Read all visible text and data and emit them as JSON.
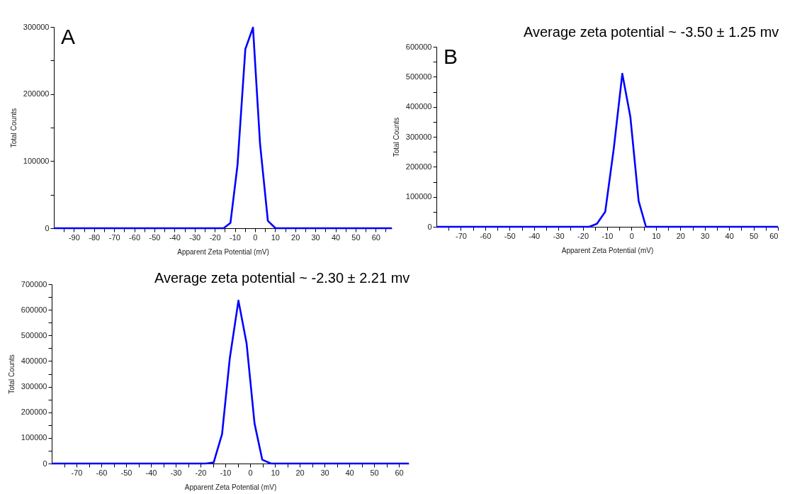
{
  "chart_data": [
    {
      "type": "line",
      "xlabel": "Apparent Zeta Potential (mV)",
      "ylabel": "Total Counts",
      "annotations": [
        "A"
      ],
      "x": [
        -100,
        -15.6,
        -12.2,
        -8.7,
        -4.8,
        -1.0,
        2.5,
        6.4,
        10.2,
        68
      ],
      "series": [
        {
          "color": "#0000ff",
          "values": [
            0,
            0,
            8000,
            94000,
            267000,
            299000,
            126000,
            11000,
            0,
            0
          ]
        }
      ],
      "xlim": [
        -100,
        68
      ],
      "ylim": [
        0,
        300000
      ],
      "xticks": [
        {
          "value": -95,
          "label": null
        },
        -90,
        {
          "value": -85,
          "label": null
        },
        -80,
        {
          "value": -75,
          "label": null
        },
        -70,
        {
          "value": -65,
          "label": null
        },
        -60,
        {
          "value": -55,
          "label": null
        },
        -50,
        {
          "value": -45,
          "label": null
        },
        -40,
        {
          "value": -35,
          "label": null
        },
        -30,
        {
          "value": -25,
          "label": null
        },
        -20,
        {
          "value": -15,
          "label": null
        },
        -10,
        {
          "value": -5,
          "label": null
        },
        0,
        {
          "value": 5,
          "label": null
        },
        10,
        {
          "value": 15,
          "label": null
        },
        20,
        {
          "value": 25,
          "label": null
        },
        30,
        {
          "value": 35,
          "label": null
        },
        40,
        {
          "value": 45,
          "label": null
        },
        50,
        {
          "value": 55,
          "label": null
        },
        60,
        {
          "value": 65,
          "label": null
        }
      ],
      "yticks": [
        0,
        {
          "value": 50000,
          "label": null
        },
        100000,
        {
          "value": 150000,
          "label": null
        },
        200000,
        {
          "value": 250000,
          "label": null
        },
        300000
      ]
    },
    {
      "type": "line",
      "title": "Average zeta potential ~ -3.50 ± 1.25 mv",
      "xlabel": "Apparent Zeta Potential (mV)",
      "ylabel": "Total Counts",
      "annotations": [
        "B"
      ],
      "x": [
        -80,
        -17.4,
        -14.2,
        -10.8,
        -7.3,
        -3.8,
        -0.5,
        2.9,
        5.9,
        60
      ],
      "series": [
        {
          "color": "#0000ff",
          "values": [
            0,
            0,
            10000,
            50000,
            260000,
            510000,
            367000,
            86000,
            0,
            0
          ]
        }
      ],
      "xlim": [
        -80,
        60
      ],
      "ylim": [
        0,
        600000
      ],
      "xticks": [
        {
          "value": -75,
          "label": null
        },
        -70,
        {
          "value": -65,
          "label": null
        },
        -60,
        {
          "value": -55,
          "label": null
        },
        -50,
        {
          "value": -45,
          "label": null
        },
        -40,
        {
          "value": -35,
          "label": null
        },
        -30,
        {
          "value": -25,
          "label": null
        },
        -20,
        {
          "value": -15,
          "label": null
        },
        -10,
        {
          "value": -5,
          "label": null
        },
        0,
        {
          "value": 5,
          "label": null
        },
        10,
        {
          "value": 15,
          "label": null
        },
        20,
        {
          "value": 25,
          "label": null
        },
        30,
        {
          "value": 35,
          "label": null
        },
        40,
        {
          "value": 45,
          "label": null
        },
        50,
        {
          "value": 55,
          "label": null
        },
        60
      ],
      "yticks": [
        0,
        {
          "value": 50000,
          "label": null
        },
        100000,
        {
          "value": 150000,
          "label": null
        },
        200000,
        {
          "value": 250000,
          "label": null
        },
        300000,
        {
          "value": 350000,
          "label": null
        },
        400000,
        {
          "value": 450000,
          "label": null
        },
        500000,
        {
          "value": 550000,
          "label": null
        },
        600000
      ]
    },
    {
      "type": "line",
      "title": "Average zeta potential ~ -2.30 ± 2.21 mv",
      "xlabel": "Apparent Zeta Potential (mV)",
      "ylabel": "Total Counts",
      "x": [
        -80,
        -17.9,
        -14.7,
        -11.3,
        -8.2,
        -4.7,
        -1.4,
        1.8,
        4.9,
        8.4,
        64
      ],
      "series": [
        {
          "color": "#0000ff",
          "values": [
            0,
            0,
            4000,
            115000,
            410000,
            636000,
            468000,
            156000,
            15000,
            0,
            0
          ]
        }
      ],
      "xlim": [
        -80,
        64
      ],
      "ylim": [
        0,
        700000
      ],
      "xticks": [
        {
          "value": -75,
          "label": null
        },
        -70,
        {
          "value": -65,
          "label": null
        },
        -60,
        {
          "value": -55,
          "label": null
        },
        -50,
        {
          "value": -45,
          "label": null
        },
        -40,
        {
          "value": -35,
          "label": null
        },
        -30,
        {
          "value": -25,
          "label": null
        },
        -20,
        {
          "value": -15,
          "label": null
        },
        -10,
        {
          "value": -5,
          "label": null
        },
        0,
        {
          "value": 5,
          "label": null
        },
        10,
        {
          "value": 15,
          "label": null
        },
        20,
        {
          "value": 25,
          "label": null
        },
        30,
        {
          "value": 35,
          "label": null
        },
        40,
        {
          "value": 45,
          "label": null
        },
        50,
        {
          "value": 55,
          "label": null
        },
        60
      ],
      "yticks": [
        0,
        {
          "value": 50000,
          "label": null
        },
        100000,
        {
          "value": 150000,
          "label": null
        },
        200000,
        {
          "value": 250000,
          "label": null
        },
        300000,
        {
          "value": 350000,
          "label": null
        },
        400000,
        {
          "value": 450000,
          "label": null
        },
        500000,
        {
          "value": 550000,
          "label": null
        },
        600000,
        {
          "value": 650000,
          "label": null
        },
        700000
      ]
    }
  ]
}
